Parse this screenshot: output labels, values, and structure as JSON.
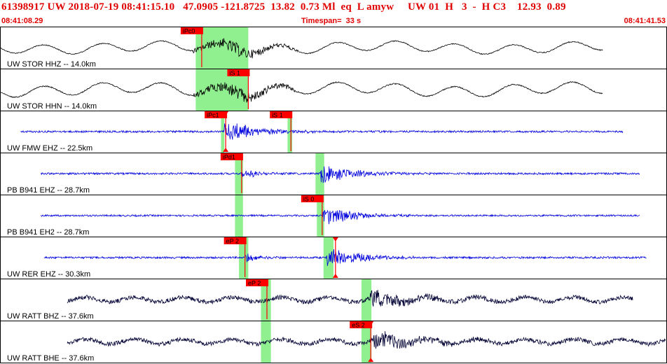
{
  "header": {
    "title": "61398917 UW 2018-07-19 08:41:15.10   47.0905 -121.8725  13.82  0.73 Ml  eq  L amyw     UW 01  H   3  -  H C3    12.93  0.89",
    "start_time": "08:41:08.29",
    "timespan": "Timespan=  33 s",
    "end_time": "08:41:41.53"
  },
  "colors": {
    "header_text": "#e00000",
    "pick_box": "#ff0000",
    "pick_line": "#ff0000",
    "window_band": "#90f090",
    "trace_broadband": "#000000",
    "trace_short_period": "#0000dd",
    "trace_far": "#000033",
    "frame": "#000000"
  },
  "traces": [
    {
      "label": "UW STOR HHZ -- 14.0km",
      "color": "#000000",
      "style": "lowfreq",
      "start": 0.0,
      "end": 0.905,
      "onset": 0.3,
      "amp": 0.4,
      "bands": [
        0.293,
        0.372
      ],
      "picks": [
        {
          "label": "iPc0",
          "t": 0.302,
          "marker": false
        }
      ]
    },
    {
      "label": "UW STOR HHN -- 14.0km",
      "color": "#000000",
      "style": "lowfreq",
      "start": 0.0,
      "end": 0.905,
      "onset": 0.3,
      "amp": 0.45,
      "bands": [
        0.293,
        0.372
      ],
      "picks": [
        {
          "label": "iS 1",
          "t": 0.372,
          "marker": false
        }
      ]
    },
    {
      "label": "UW FMW EHZ -- 22.5km",
      "color": "#0000dd",
      "style": "hf",
      "start": 0.03,
      "end": 0.935,
      "onset": 0.335,
      "amp": 0.5,
      "bands": [
        0.331,
        0.336,
        0.431,
        0.438
      ],
      "picks": [
        {
          "label": "iPc1",
          "t": 0.338,
          "marker": true
        },
        {
          "label": "iS 1",
          "t": 0.436,
          "marker": false
        }
      ]
    },
    {
      "label": "PB B941 EHZ -- 28.7km",
      "color": "#0000dd",
      "style": "hf",
      "start": 0.06,
      "end": 0.96,
      "onset": 0.48,
      "amp": 0.5,
      "bands": [
        0.352,
        0.364,
        0.473,
        0.486
      ],
      "picks": [
        {
          "label": "iPd1",
          "t": 0.362,
          "marker": false
        }
      ]
    },
    {
      "label": "PB B941 EH2 -- 28.7km",
      "color": "#0000dd",
      "style": "hf",
      "start": 0.06,
      "end": 0.96,
      "onset": 0.485,
      "amp": 0.45,
      "bands": [
        0.352,
        0.364,
        0.475,
        0.486
      ],
      "picks": [
        {
          "label": "iS 0",
          "t": 0.483,
          "marker": false
        }
      ]
    },
    {
      "label": "UW RER EHZ -- 30.3km",
      "color": "#0000dd",
      "style": "hf",
      "start": 0.065,
      "end": 0.97,
      "onset": 0.49,
      "amp": 0.5,
      "bands": [
        0.358,
        0.372,
        0.485,
        0.5
      ],
      "picks": [
        {
          "label": "eP 2",
          "t": 0.367,
          "marker": false
        },
        {
          "label": "",
          "t": 0.503,
          "marker": true
        }
      ]
    },
    {
      "label": "UW RATT BHZ -- 37.6km",
      "color": "#000033",
      "style": "mixed",
      "start": 0.1,
      "end": 0.95,
      "onset": 0.555,
      "amp": 0.45,
      "bands": [
        0.391,
        0.406,
        0.542,
        0.557
      ],
      "picks": [
        {
          "label": "eP 2",
          "t": 0.4,
          "marker": false
        }
      ]
    },
    {
      "label": "UW RATT BHE -- 37.6km",
      "color": "#000033",
      "style": "mixed",
      "start": 0.1,
      "end": 0.999,
      "onset": 0.56,
      "amp": 0.45,
      "bands": [
        0.391,
        0.406,
        0.542,
        0.557
      ],
      "picks": [
        {
          "label": "eS 2",
          "t": 0.556,
          "marker": true
        }
      ]
    }
  ]
}
